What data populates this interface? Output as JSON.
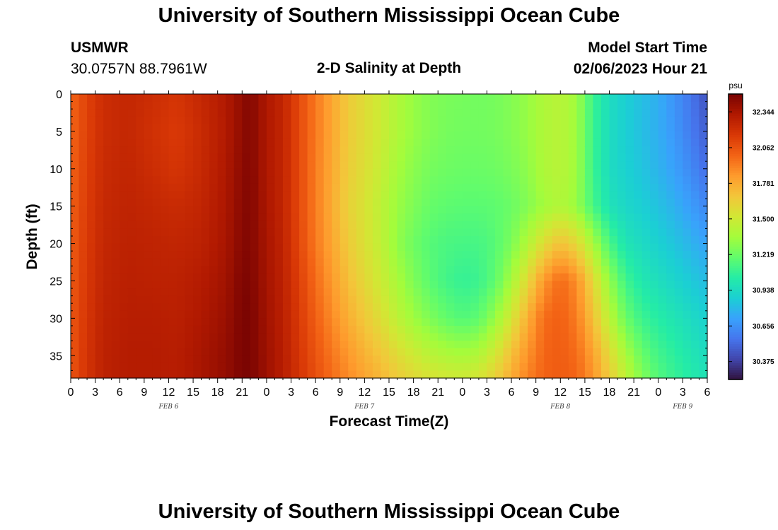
{
  "header": {
    "title": "University of Southern Mississippi Ocean Cube",
    "station_id": "USMWR",
    "coordinates": "30.0757N  88.7961W",
    "plot_title": "2-D Salinity at Depth",
    "model_start_label": "Model Start Time",
    "model_start_value": "02/06/2023 Hour 21"
  },
  "footer": {
    "title": "University of Southern Mississippi Ocean Cube"
  },
  "chart_data": {
    "type": "heatmap",
    "xlabel": "Forecast Time(Z)",
    "ylabel": "Depth (ft)",
    "x_unit": "hours from 02/06/2023 00Z",
    "xlim": [
      0,
      78
    ],
    "ylim": [
      0,
      38
    ],
    "y_inverted": true,
    "x_tick_labels": [
      "0",
      "3",
      "6",
      "9",
      "12",
      "15",
      "18",
      "21",
      "0",
      "3",
      "6",
      "9",
      "12",
      "15",
      "18",
      "21",
      "0",
      "3",
      "6",
      "9",
      "12",
      "15",
      "18",
      "21",
      "0",
      "3",
      "6"
    ],
    "y_ticks": [
      0,
      5,
      10,
      15,
      20,
      25,
      30,
      35
    ],
    "day_labels": [
      {
        "label": "FEB 6",
        "hour": 12
      },
      {
        "label": "FEB 7",
        "hour": 36
      },
      {
        "label": "FEB 8",
        "hour": 60
      },
      {
        "label": "FEB 9",
        "hour": 75
      }
    ],
    "colorbar": {
      "unit": "psu",
      "min": 30.234,
      "max": 32.485,
      "ticks": [
        30.375,
        30.656,
        30.938,
        31.219,
        31.5,
        31.781,
        32.062,
        32.344
      ],
      "colormap": [
        "#30123b",
        "#4145ab",
        "#4675ed",
        "#39a2fc",
        "#1bcfd4",
        "#24eca6",
        "#61fc6c",
        "#a4fc3b",
        "#d1e834",
        "#f3c63a",
        "#fe9b2d",
        "#f36315",
        "#d93806",
        "#b11901",
        "#7a0402"
      ]
    },
    "salinity_grid": {
      "depths_ft": [
        0,
        5,
        10,
        15,
        20,
        25,
        30,
        35,
        38
      ],
      "hours": [
        0,
        2,
        4,
        7,
        10,
        13,
        16,
        19,
        21,
        22,
        24,
        26,
        28,
        30,
        32,
        34,
        36,
        38,
        40,
        42,
        44,
        46,
        48,
        50,
        52,
        54,
        56,
        58,
        60,
        62,
        64,
        66,
        68,
        70,
        72,
        74,
        76,
        78
      ],
      "values_psu": [
        [
          32.0,
          32.13,
          32.22,
          32.25,
          32.22,
          32.18,
          32.25,
          32.32,
          32.42,
          32.46,
          32.33,
          32.26,
          32.1,
          31.94,
          31.8,
          31.66,
          31.58,
          31.5,
          31.4,
          31.33,
          31.28,
          31.26,
          31.25,
          31.24,
          31.25,
          31.28,
          31.33,
          31.4,
          31.43,
          31.35,
          31.1,
          30.95,
          30.88,
          30.82,
          30.76,
          30.66,
          30.56,
          30.44
        ],
        [
          32.0,
          32.13,
          32.22,
          32.25,
          32.2,
          32.16,
          32.23,
          32.32,
          32.42,
          32.46,
          32.33,
          32.26,
          32.1,
          31.94,
          31.8,
          31.66,
          31.58,
          31.5,
          31.4,
          31.33,
          31.28,
          31.25,
          31.24,
          31.24,
          31.25,
          31.28,
          31.33,
          31.4,
          31.43,
          31.35,
          31.1,
          30.95,
          30.88,
          30.82,
          30.76,
          30.68,
          30.58,
          30.48
        ],
        [
          32.01,
          32.14,
          32.23,
          32.26,
          32.22,
          32.18,
          32.24,
          32.33,
          32.43,
          32.46,
          32.33,
          32.26,
          32.1,
          31.93,
          31.79,
          31.65,
          31.57,
          31.48,
          31.37,
          31.3,
          31.25,
          31.23,
          31.22,
          31.22,
          31.23,
          31.26,
          31.31,
          31.4,
          31.43,
          31.35,
          31.1,
          30.95,
          30.89,
          30.84,
          30.78,
          30.71,
          30.63,
          30.53
        ],
        [
          32.02,
          32.15,
          32.24,
          32.27,
          32.25,
          32.23,
          32.26,
          32.34,
          32.44,
          32.46,
          32.34,
          32.26,
          32.1,
          31.93,
          31.78,
          31.63,
          31.55,
          31.45,
          31.34,
          31.27,
          31.21,
          31.19,
          31.18,
          31.18,
          31.19,
          31.22,
          31.28,
          31.36,
          31.41,
          31.33,
          31.13,
          30.98,
          30.92,
          30.88,
          30.83,
          30.77,
          30.7,
          30.62
        ],
        [
          32.03,
          32.16,
          32.25,
          32.28,
          32.27,
          32.26,
          32.28,
          32.35,
          32.45,
          32.46,
          32.35,
          32.27,
          32.11,
          31.94,
          31.8,
          31.66,
          31.56,
          31.46,
          31.32,
          31.23,
          31.17,
          31.14,
          31.13,
          31.13,
          31.17,
          31.26,
          31.41,
          31.58,
          31.7,
          31.6,
          31.38,
          31.14,
          30.99,
          30.94,
          30.89,
          30.84,
          30.78,
          30.72
        ],
        [
          32.04,
          32.17,
          32.26,
          32.29,
          32.28,
          32.28,
          32.31,
          32.37,
          32.47,
          32.47,
          32.36,
          32.28,
          32.14,
          31.98,
          31.84,
          31.71,
          31.6,
          31.5,
          31.38,
          31.27,
          31.18,
          31.12,
          31.08,
          31.1,
          31.19,
          31.37,
          31.6,
          31.85,
          31.99,
          31.88,
          31.6,
          31.32,
          31.11,
          31.01,
          30.96,
          30.91,
          30.86,
          30.81
        ],
        [
          32.05,
          32.18,
          32.27,
          32.3,
          32.3,
          32.29,
          32.33,
          32.39,
          32.48,
          32.48,
          32.37,
          32.29,
          32.16,
          32.02,
          31.89,
          31.77,
          31.67,
          31.57,
          31.45,
          31.35,
          31.27,
          31.2,
          31.16,
          31.19,
          31.33,
          31.53,
          31.77,
          31.98,
          32.02,
          31.93,
          31.7,
          31.44,
          31.22,
          31.1,
          31.04,
          30.99,
          30.94,
          30.89
        ],
        [
          32.05,
          32.19,
          32.28,
          32.31,
          32.31,
          32.3,
          32.35,
          32.41,
          32.48,
          32.48,
          32.38,
          32.3,
          32.18,
          32.06,
          31.95,
          31.85,
          31.76,
          31.68,
          31.59,
          31.51,
          31.44,
          31.4,
          31.38,
          31.41,
          31.53,
          31.71,
          31.87,
          32.0,
          32.03,
          31.98,
          31.82,
          31.6,
          31.38,
          31.22,
          31.12,
          31.06,
          31.0,
          30.95
        ],
        [
          32.06,
          32.19,
          32.28,
          32.31,
          32.31,
          32.3,
          32.35,
          32.41,
          32.48,
          32.48,
          32.38,
          32.3,
          32.19,
          32.08,
          31.98,
          31.89,
          31.81,
          31.74,
          31.66,
          31.6,
          31.55,
          31.52,
          31.51,
          31.54,
          31.64,
          31.78,
          31.92,
          32.01,
          32.03,
          32.0,
          31.86,
          31.66,
          31.45,
          31.28,
          31.16,
          31.09,
          31.03,
          30.98
        ]
      ]
    }
  }
}
